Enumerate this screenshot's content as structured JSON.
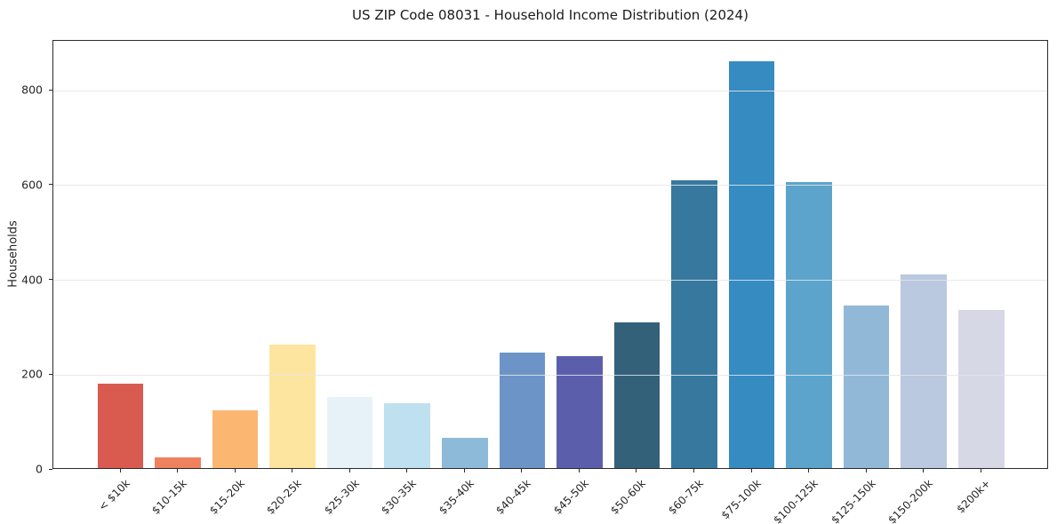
{
  "chart_data": {
    "type": "bar",
    "title": "US ZIP Code 08031 - Household Income Distribution (2024)",
    "xlabel": "",
    "ylabel": "Households",
    "categories": [
      "< $10k",
      "$10-15k",
      "$15-20k",
      "$20-25k",
      "$25-30k",
      "$30-35k",
      "$35-40k",
      "$40-45k",
      "$45-50k",
      "$50-60k",
      "$60-75k",
      "$75-100k",
      "$100-125k",
      "$125-150k",
      "$150-200k",
      "$200k+"
    ],
    "values": [
      178,
      22,
      122,
      260,
      150,
      137,
      63,
      244,
      236,
      307,
      607,
      858,
      604,
      342,
      408,
      333
    ],
    "bar_colors": [
      "#d95b50",
      "#f0815e",
      "#fbb772",
      "#fde5a0",
      "#e7f2f8",
      "#bfe0ee",
      "#8ebada",
      "#6c94c6",
      "#5b5fab",
      "#33617a",
      "#37789f",
      "#368bc1",
      "#5ca4cb",
      "#92b8d8",
      "#bac8e0",
      "#d7d8e6"
    ],
    "ylim": [
      0,
      905
    ],
    "yticks": [
      0,
      200,
      400,
      600,
      800
    ],
    "grid": "horizontal-light",
    "legend_position": "none",
    "x_tick_rotation_deg": 45
  }
}
